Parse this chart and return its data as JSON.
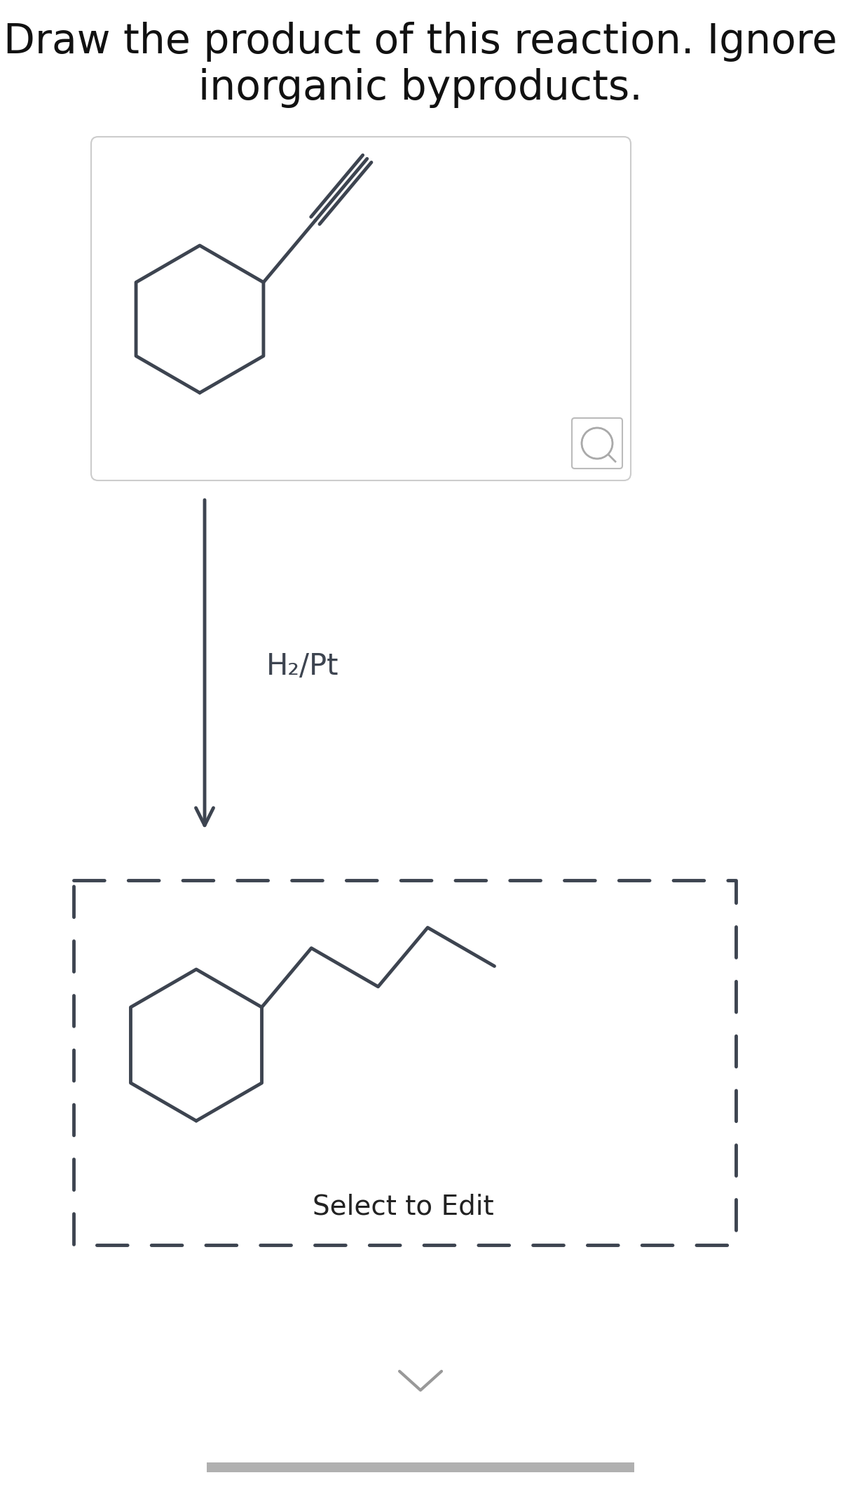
{
  "title_line1": "Draw the product of this reaction. Ignore",
  "title_line2": "inorganic byproducts.",
  "reagent": "H₂/Pt",
  "bg_color": "#ffffff",
  "molecule_color": "#3d4450",
  "arrow_color": "#3d4450",
  "title_color": "#111111",
  "box_bg": "#ffffff",
  "box_border": "#cccccc",
  "dashed_border": "#3d4450",
  "select_text": "Select to Edit",
  "select_text_color": "#222222",
  "bottom_bar_color": "#b0b0b0",
  "chevron_color": "#666666",
  "title_fontsize": 42,
  "reagent_fontsize": 30,
  "select_fontsize": 28,
  "mol_lw": 3.5
}
